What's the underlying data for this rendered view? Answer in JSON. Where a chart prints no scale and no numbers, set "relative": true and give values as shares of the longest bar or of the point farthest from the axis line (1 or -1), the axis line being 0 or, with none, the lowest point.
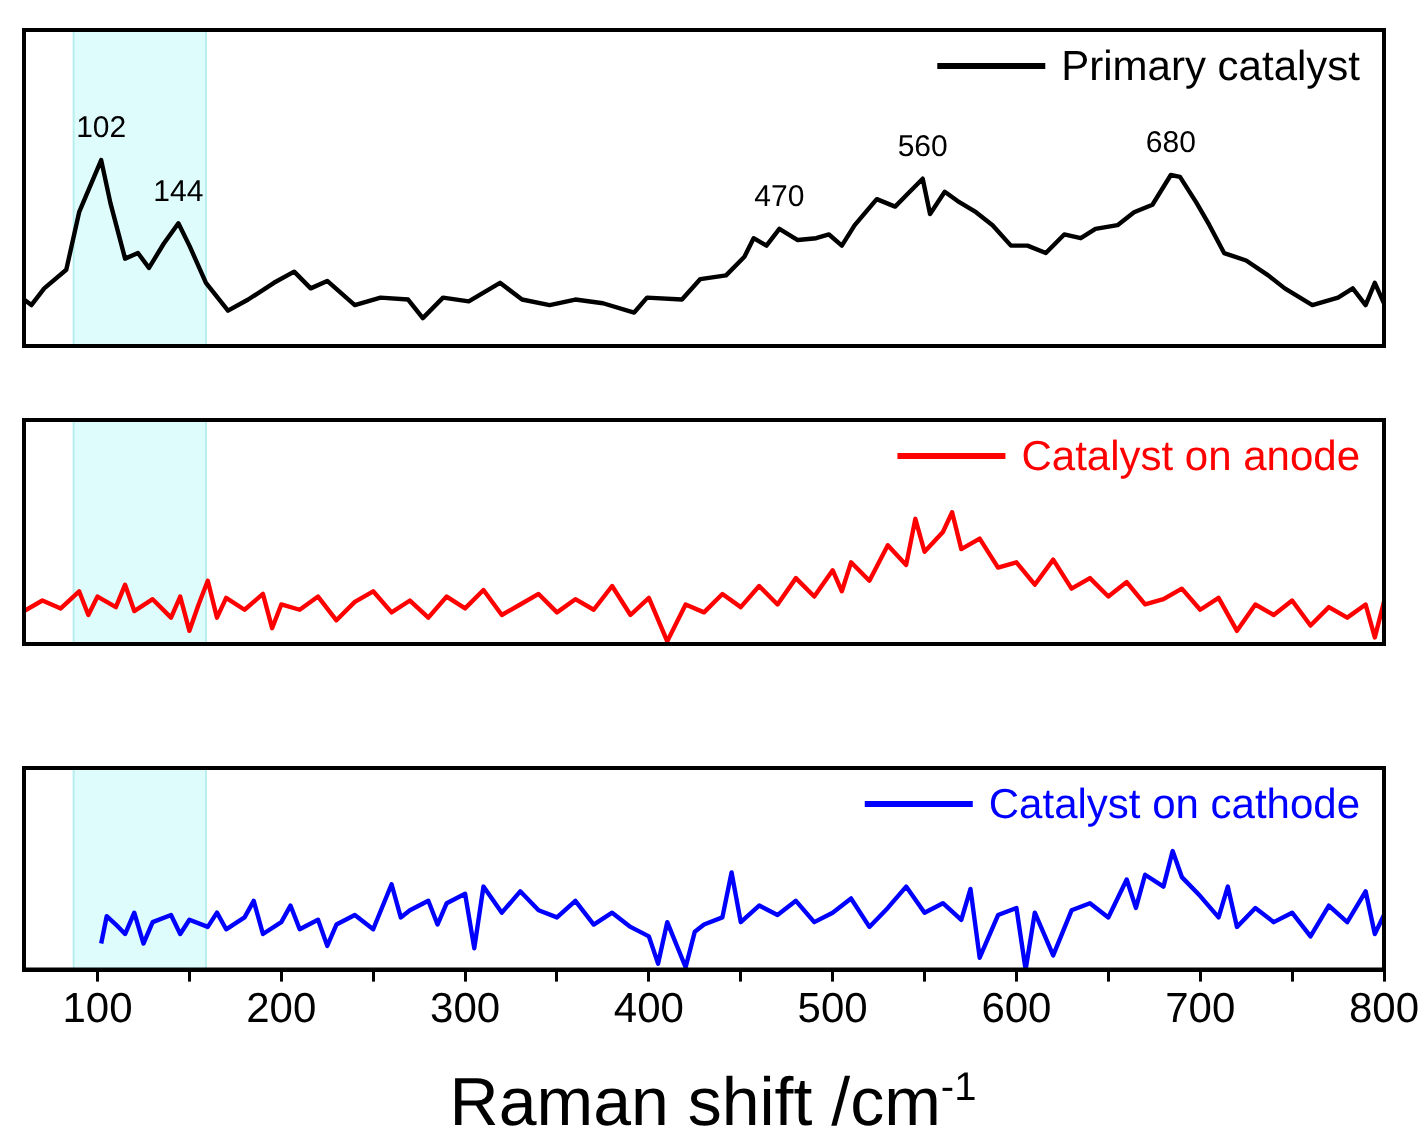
{
  "chart_data": [
    {
      "type": "line",
      "relative": true,
      "grid": false,
      "tick_labels": false,
      "legend": "top right",
      "xlim": [
        60,
        800
      ],
      "x": [
        60,
        64,
        71,
        83,
        90,
        102,
        107,
        115,
        122,
        128,
        136,
        144,
        150,
        159,
        171,
        182,
        196,
        207,
        216,
        225,
        240,
        254,
        269,
        277,
        288,
        302,
        319,
        331,
        346,
        360,
        375,
        392,
        399,
        418,
        428,
        442,
        452,
        457,
        464,
        471,
        481,
        491,
        498,
        505,
        512,
        524,
        534,
        541,
        549,
        553,
        561,
        568,
        578,
        587,
        597,
        606,
        616,
        626,
        635,
        643,
        655,
        664,
        674,
        684,
        689,
        698,
        705,
        713,
        725,
        737,
        746,
        761,
        775,
        783,
        790,
        795,
        800
      ],
      "series": [
        {
          "name": "Primary catalyst",
          "color": "#000000",
          "values": [
            0.25,
            0.22,
            0.31,
            0.41,
            0.72,
            1.0,
            0.77,
            0.47,
            0.5,
            0.42,
            0.55,
            0.66,
            0.54,
            0.34,
            0.19,
            0.25,
            0.34,
            0.4,
            0.31,
            0.35,
            0.22,
            0.26,
            0.25,
            0.15,
            0.26,
            0.24,
            0.34,
            0.25,
            0.22,
            0.25,
            0.23,
            0.18,
            0.26,
            0.25,
            0.36,
            0.38,
            0.48,
            0.58,
            0.54,
            0.63,
            0.57,
            0.58,
            0.6,
            0.54,
            0.65,
            0.79,
            0.75,
            0.82,
            0.9,
            0.71,
            0.83,
            0.78,
            0.72,
            0.65,
            0.54,
            0.54,
            0.5,
            0.6,
            0.58,
            0.63,
            0.65,
            0.72,
            0.76,
            0.92,
            0.91,
            0.77,
            0.65,
            0.5,
            0.46,
            0.38,
            0.31,
            0.22,
            0.26,
            0.31,
            0.22,
            0.34,
            0.23
          ]
        }
      ],
      "bands": [
        {
          "axis": "x",
          "from": 87,
          "to": 159,
          "color": "#dffcfc"
        }
      ],
      "annotations": [
        {
          "text": "102",
          "x": 102,
          "y": 1.0
        },
        {
          "text": "144",
          "x": 144,
          "y": 0.66
        },
        {
          "text": "470",
          "x": 471,
          "y": 0.63
        },
        {
          "text": "560",
          "x": 549,
          "y": 0.9
        },
        {
          "text": "680",
          "x": 684,
          "y": 0.92
        }
      ]
    },
    {
      "type": "line",
      "relative": true,
      "grid": false,
      "tick_labels": false,
      "legend": "top right",
      "xlim": [
        60,
        800
      ],
      "x": [
        60,
        70,
        80,
        90,
        95,
        100,
        110,
        115,
        120,
        130,
        140,
        145,
        150,
        155,
        160,
        165,
        170,
        180,
        190,
        195,
        200,
        210,
        220,
        230,
        240,
        250,
        260,
        270,
        280,
        290,
        300,
        310,
        320,
        330,
        340,
        350,
        360,
        370,
        380,
        390,
        400,
        410,
        420,
        430,
        440,
        450,
        460,
        470,
        480,
        490,
        500,
        505,
        510,
        520,
        530,
        540,
        545,
        550,
        560,
        565,
        570,
        580,
        590,
        600,
        610,
        620,
        630,
        640,
        650,
        660,
        670,
        680,
        690,
        700,
        710,
        720,
        730,
        740,
        750,
        760,
        770,
        780,
        790,
        795,
        800
      ],
      "series": [
        {
          "name": "Catalyst on anode",
          "color": "#ff0000",
          "values": [
            0.25,
            0.33,
            0.27,
            0.4,
            0.22,
            0.36,
            0.28,
            0.45,
            0.25,
            0.34,
            0.2,
            0.36,
            0.1,
            0.3,
            0.48,
            0.2,
            0.35,
            0.26,
            0.38,
            0.12,
            0.3,
            0.26,
            0.36,
            0.18,
            0.32,
            0.4,
            0.24,
            0.33,
            0.2,
            0.36,
            0.27,
            0.41,
            0.22,
            0.3,
            0.38,
            0.24,
            0.34,
            0.26,
            0.44,
            0.22,
            0.35,
            0.02,
            0.3,
            0.24,
            0.38,
            0.28,
            0.44,
            0.3,
            0.5,
            0.36,
            0.56,
            0.4,
            0.62,
            0.48,
            0.75,
            0.6,
            0.95,
            0.7,
            0.85,
            1.0,
            0.72,
            0.8,
            0.58,
            0.62,
            0.45,
            0.64,
            0.42,
            0.5,
            0.36,
            0.47,
            0.3,
            0.34,
            0.42,
            0.26,
            0.35,
            0.1,
            0.3,
            0.22,
            0.33,
            0.14,
            0.28,
            0.2,
            0.3,
            0.05,
            0.32
          ]
        }
      ],
      "bands": [
        {
          "axis": "x",
          "from": 87,
          "to": 159,
          "color": "#dffcfc"
        }
      ]
    },
    {
      "type": "line",
      "relative": true,
      "grid": false,
      "tick_labels": "x",
      "legend": "top right",
      "xlim": [
        60,
        800
      ],
      "xticks": [
        100,
        {
          "value": 150,
          "label": null
        },
        200,
        {
          "value": 250,
          "label": null
        },
        300,
        {
          "value": 350,
          "label": null
        },
        400,
        {
          "value": 450,
          "label": null
        },
        500,
        {
          "value": 550,
          "label": null
        },
        600,
        {
          "value": 650,
          "label": null
        },
        700,
        {
          "value": 750,
          "label": null
        },
        800
      ],
      "xlabel": "Raman shift /cm$^{-1}$",
      "x": [
        102,
        105,
        110,
        115,
        120,
        125,
        130,
        140,
        145,
        150,
        160,
        165,
        170,
        180,
        185,
        190,
        200,
        205,
        210,
        220,
        225,
        230,
        240,
        250,
        260,
        265,
        270,
        280,
        285,
        290,
        300,
        305,
        310,
        320,
        330,
        340,
        350,
        360,
        370,
        380,
        390,
        400,
        405,
        410,
        420,
        425,
        430,
        440,
        445,
        450,
        460,
        470,
        480,
        490,
        500,
        510,
        520,
        530,
        540,
        550,
        560,
        570,
        575,
        580,
        590,
        600,
        605,
        610,
        620,
        630,
        640,
        650,
        660,
        665,
        670,
        680,
        685,
        690,
        700,
        710,
        715,
        720,
        730,
        740,
        750,
        760,
        770,
        780,
        790,
        795,
        800
      ],
      "series": [
        {
          "name": "Catalyst on cathode",
          "color": "#0000ff",
          "values": [
            0.22,
            0.45,
            0.38,
            0.3,
            0.48,
            0.22,
            0.4,
            0.46,
            0.3,
            0.42,
            0.36,
            0.48,
            0.34,
            0.44,
            0.58,
            0.3,
            0.4,
            0.54,
            0.34,
            0.42,
            0.2,
            0.38,
            0.46,
            0.34,
            0.72,
            0.44,
            0.5,
            0.58,
            0.38,
            0.56,
            0.64,
            0.18,
            0.7,
            0.48,
            0.66,
            0.5,
            0.44,
            0.58,
            0.38,
            0.48,
            0.36,
            0.28,
            0.05,
            0.4,
            0.02,
            0.32,
            0.38,
            0.44,
            0.82,
            0.4,
            0.54,
            0.46,
            0.58,
            0.4,
            0.48,
            0.6,
            0.36,
            0.52,
            0.7,
            0.48,
            0.56,
            0.42,
            0.68,
            0.1,
            0.46,
            0.52,
            0.0,
            0.48,
            0.12,
            0.5,
            0.56,
            0.44,
            0.76,
            0.52,
            0.8,
            0.7,
            1.0,
            0.78,
            0.62,
            0.44,
            0.7,
            0.36,
            0.52,
            0.4,
            0.48,
            0.28,
            0.54,
            0.4,
            0.66,
            0.3,
            0.46
          ]
        }
      ],
      "bands": [
        {
          "axis": "x",
          "from": 87,
          "to": 159,
          "color": "#dffcfc"
        }
      ]
    }
  ]
}
